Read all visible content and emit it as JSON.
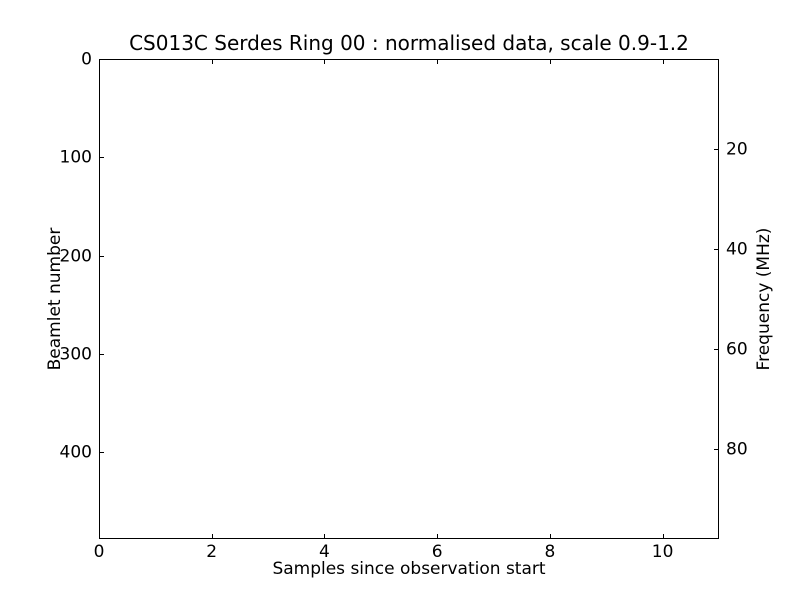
{
  "figure": {
    "background_color": "#ffffff",
    "frame_color": "#000000",
    "text_color": "#000000"
  },
  "chart_data": {
    "type": "heatmap",
    "title": "CS013C Serdes Ring 00 : normalised data, scale 0.9-1.2",
    "xlabel": "Samples since observation start",
    "ylabel_left": "Beamlet number",
    "ylabel_right": "Frequency (MHz)",
    "xlim": [
      0,
      11
    ],
    "ylim_left": [
      0,
      488
    ],
    "ylim_right": [
      2,
      98
    ],
    "xticks": [
      0,
      2,
      4,
      6,
      8,
      10
    ],
    "yticks_left": [
      0,
      100,
      200,
      300,
      400
    ],
    "yticks_right": [
      20,
      40,
      60,
      80
    ],
    "tick_direction": "in",
    "grid": false,
    "legend": null,
    "series": [],
    "plot_area_content": "blank"
  }
}
